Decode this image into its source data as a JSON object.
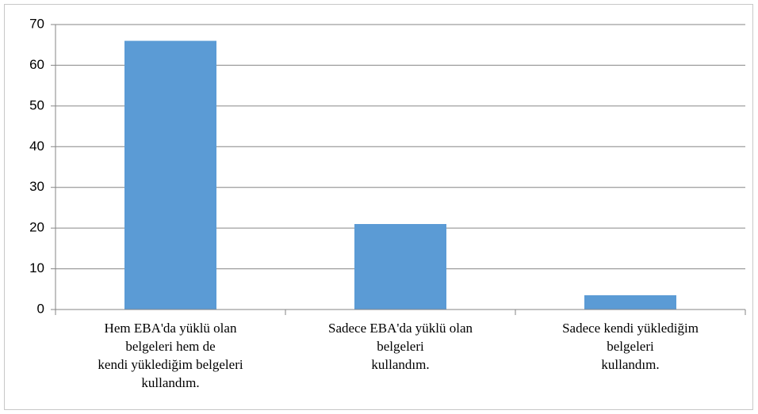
{
  "chart_data": {
    "type": "bar",
    "categories": [
      [
        "Hem EBA'da yüklü olan",
        "belgeleri hem de",
        "kendi yüklediğim belgeleri",
        "kullandım."
      ],
      [
        "Sadece EBA'da yüklü olan",
        "belgeleri",
        "kullandım."
      ],
      [
        "Sadece kendi yüklediğim",
        "belgeleri",
        "kullandım."
      ]
    ],
    "values": [
      66,
      21,
      3.5
    ],
    "color": "#5b9bd5",
    "ylim": [
      0,
      70
    ],
    "yticks": [
      0,
      10,
      20,
      30,
      40,
      50,
      60,
      70
    ],
    "grid": true
  }
}
